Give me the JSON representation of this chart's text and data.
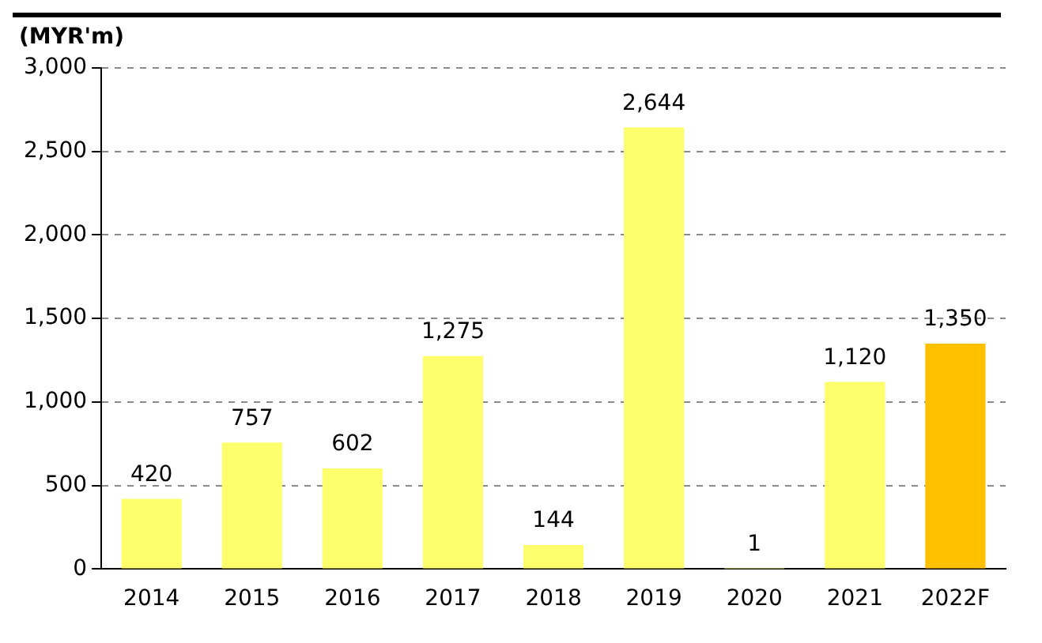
{
  "chart_data": {
    "type": "bar",
    "ylabel": "(MYR'm)",
    "categories": [
      "2014",
      "2015",
      "2016",
      "2017",
      "2018",
      "2019",
      "2020",
      "2021",
      "2022F"
    ],
    "values": [
      420,
      757,
      602,
      1275,
      144,
      2644,
      1,
      1120,
      1350
    ],
    "colors": [
      "#ffff6e",
      "#ffff6e",
      "#ffff6e",
      "#ffff6e",
      "#ffff6e",
      "#ffff6e",
      "#ffff6e",
      "#ffff6e",
      "#ffc000"
    ],
    "value_labels": [
      "420",
      "757",
      "602",
      "1,275",
      "144",
      "2,644",
      "1",
      "1,120",
      "1,350"
    ],
    "ylim": [
      0,
      3000
    ],
    "yticks": [
      {
        "value": 0,
        "label": "0"
      },
      {
        "value": 500,
        "label": "500"
      },
      {
        "value": 1000,
        "label": "1,000"
      },
      {
        "value": 1500,
        "label": "1,500"
      },
      {
        "value": 2000,
        "label": "2,000"
      },
      {
        "value": 2500,
        "label": "2,500"
      },
      {
        "value": 3000,
        "label": "3,000"
      }
    ],
    "grid": "y",
    "legend": false
  }
}
